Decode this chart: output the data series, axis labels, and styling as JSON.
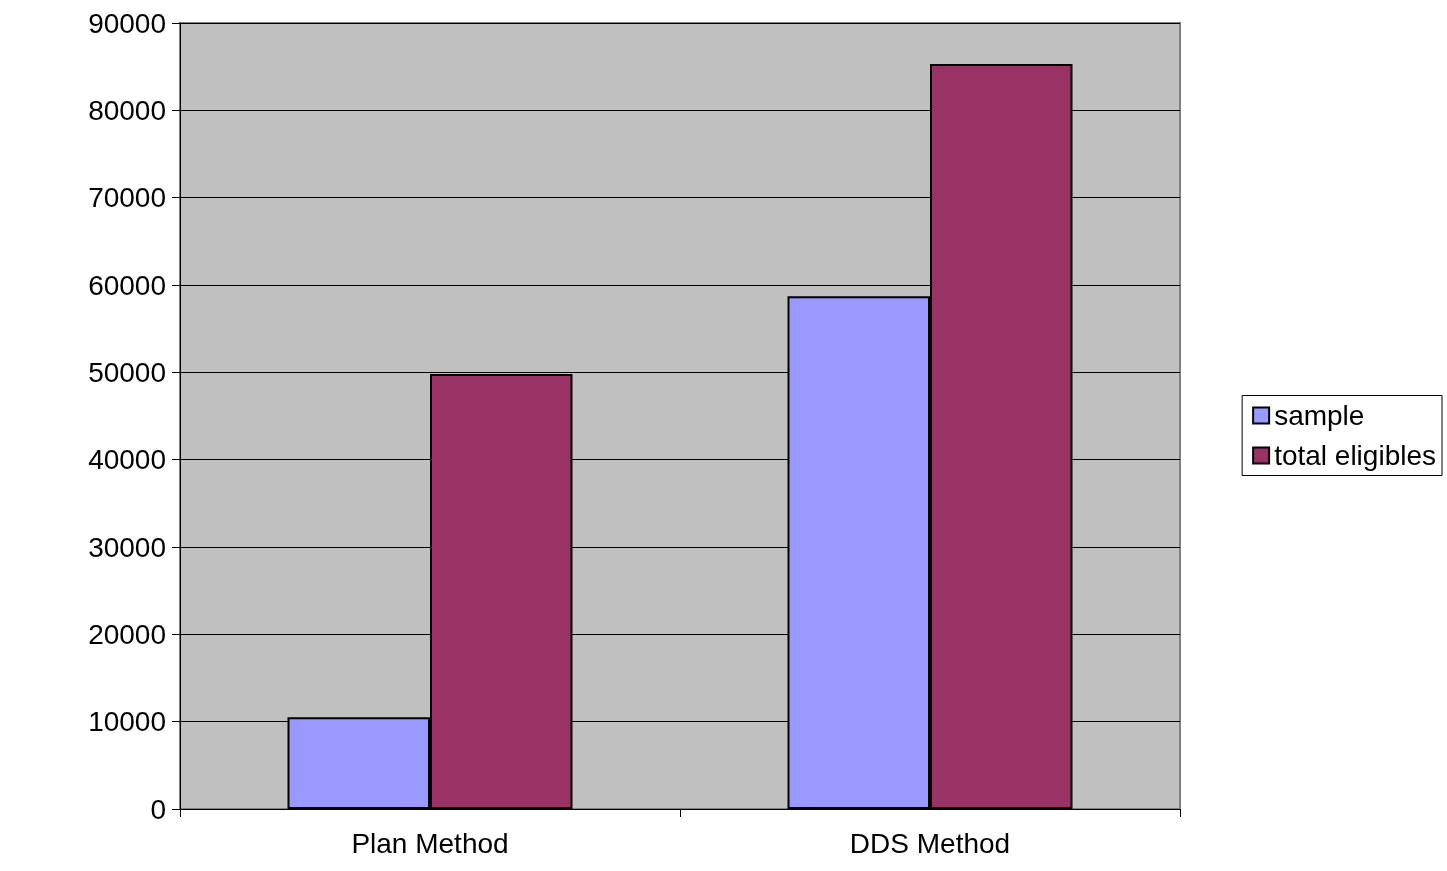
{
  "chart_data": {
    "type": "bar",
    "categories": [
      "Plan Method",
      "DDS Method"
    ],
    "series": [
      {
        "name": "sample",
        "color": "#9999ff",
        "values": [
          10500,
          58700
        ]
      },
      {
        "name": "total eligibles",
        "color": "#993366",
        "values": [
          49800,
          85300
        ]
      }
    ],
    "ylim": [
      0,
      90000
    ],
    "yticks": [
      0,
      10000,
      20000,
      30000,
      40000,
      50000,
      60000,
      70000,
      80000,
      90000
    ],
    "grid": "y",
    "legend": "right"
  }
}
